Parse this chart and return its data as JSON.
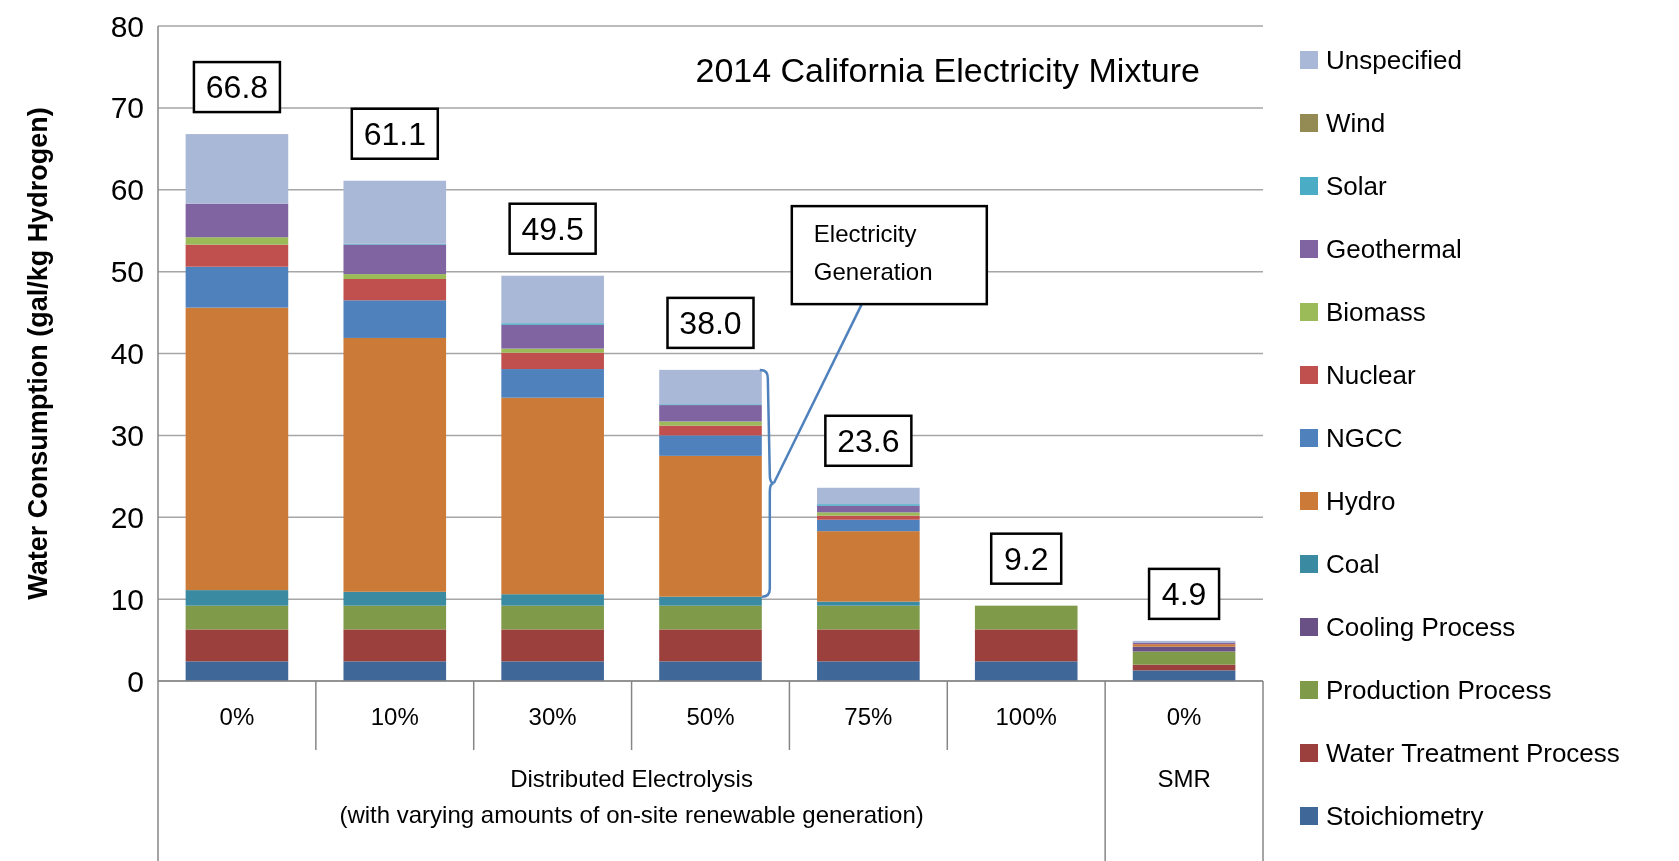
{
  "chart_data": {
    "type": "bar",
    "stacked": true,
    "title": "2014 California Electricity Mixture",
    "ylabel": "Water Consumption (gal/kg Hydrogen)",
    "categories": [
      "0%",
      "10%",
      "30%",
      "50%",
      "75%",
      "100%",
      "0%"
    ],
    "ylim": [
      0,
      80
    ],
    "yticks": [
      0,
      10,
      20,
      30,
      40,
      50,
      60,
      70,
      80
    ],
    "grid": "y",
    "legend": "right",
    "series": [
      {
        "name": "Stoichiometry",
        "color": "#3f6899",
        "values": [
          2.4,
          2.4,
          2.4,
          2.4,
          2.4,
          2.4,
          1.3
        ]
      },
      {
        "name": "Water Treatment Process",
        "color": "#9c403d",
        "values": [
          3.9,
          3.9,
          3.9,
          3.9,
          3.9,
          3.9,
          0.7
        ]
      },
      {
        "name": "Production Process",
        "color": "#7f9a48",
        "values": [
          2.9,
          2.9,
          2.9,
          2.9,
          2.9,
          2.9,
          1.6
        ]
      },
      {
        "name": "Cooling Process",
        "color": "#695185",
        "values": [
          0,
          0,
          0,
          0,
          0,
          0,
          0.6
        ]
      },
      {
        "name": "Coal",
        "color": "#3a8ba2",
        "values": [
          1.9,
          1.7,
          1.4,
          1.1,
          0.5,
          0,
          0
        ]
      },
      {
        "name": "Hydro",
        "color": "#cc7a37",
        "values": [
          34.5,
          31.0,
          24.0,
          17.2,
          8.6,
          0,
          0.3
        ]
      },
      {
        "name": "NGCC",
        "color": "#4f81bd",
        "values": [
          5.0,
          4.6,
          3.5,
          2.5,
          1.4,
          0,
          0
        ]
      },
      {
        "name": "Nuclear",
        "color": "#c0504d",
        "values": [
          2.7,
          2.6,
          2.0,
          1.2,
          0.5,
          0,
          0
        ]
      },
      {
        "name": "Biomass",
        "color": "#9bbb59",
        "values": [
          0.9,
          0.6,
          0.5,
          0.5,
          0.4,
          0,
          0
        ]
      },
      {
        "name": "Geothermal",
        "color": "#8064a2",
        "values": [
          4.1,
          3.6,
          2.9,
          2.0,
          0.8,
          0,
          0.2
        ]
      },
      {
        "name": "Solar",
        "color": "#4bacc6",
        "values": [
          0,
          0.1,
          0.2,
          0.1,
          0.2,
          0,
          0
        ]
      },
      {
        "name": "Wind",
        "color": "#948a54",
        "values": [
          0,
          0,
          0,
          0,
          0,
          0,
          0
        ]
      },
      {
        "name": "Unspecified",
        "color": "#a9b8d6",
        "values": [
          8.5,
          7.7,
          5.8,
          4.2,
          2.0,
          0,
          0.2
        ]
      }
    ],
    "totals": [
      "66.8",
      "61.1",
      "49.5",
      "38.0",
      "23.6",
      "9.2",
      "4.9"
    ],
    "annotations": [
      "Distributed Electrolysis\n(with varying amounts of on-site renewable generation)",
      "SMR",
      "Electricity\nGeneration"
    ]
  }
}
